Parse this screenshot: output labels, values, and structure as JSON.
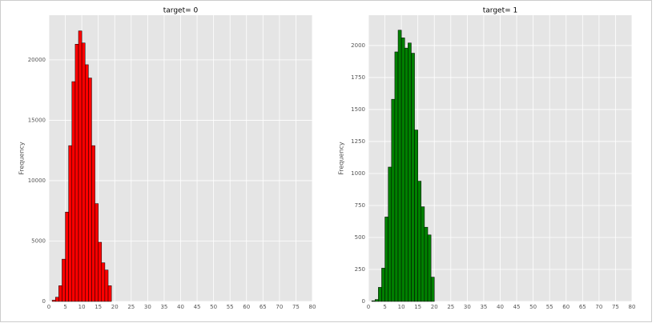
{
  "chart_data": [
    {
      "type": "histogram",
      "title": "target= 0",
      "y_label": "Frequency",
      "color": "#ff0000",
      "grid": true,
      "bins": [
        1,
        2,
        3,
        4,
        5,
        6,
        7,
        8,
        9,
        10,
        11,
        12,
        13,
        14,
        15,
        16,
        17,
        18,
        19
      ],
      "values": [
        100,
        350,
        1300,
        3500,
        7400,
        12900,
        18200,
        21300,
        22400,
        21400,
        19600,
        18500,
        12900,
        8100,
        4900,
        3200,
        2600,
        1300
      ],
      "xlim": [
        0,
        80
      ],
      "xticks": [
        0,
        5,
        10,
        15,
        20,
        25,
        30,
        35,
        40,
        45,
        50,
        55,
        60,
        65,
        70,
        75,
        80
      ],
      "ylim": [
        0,
        23700
      ],
      "yticks": [
        0,
        5000,
        10000,
        15000,
        20000
      ]
    },
    {
      "type": "histogram",
      "title": "target= 1",
      "y_label": "Frequency",
      "color": "#008000",
      "grid": true,
      "bins": [
        1,
        2,
        3,
        4,
        5,
        6,
        7,
        8,
        9,
        10,
        11,
        12,
        13,
        14,
        15,
        16,
        17,
        18,
        19,
        20
      ],
      "values": [
        5,
        15,
        110,
        260,
        660,
        1050,
        1580,
        1950,
        2120,
        2060,
        1980,
        2020,
        1940,
        1340,
        940,
        740,
        580,
        520,
        190
      ],
      "xlim": [
        0,
        80
      ],
      "xticks": [
        0,
        5,
        10,
        15,
        20,
        25,
        30,
        35,
        40,
        45,
        50,
        55,
        60,
        65,
        70,
        75,
        80
      ],
      "ylim": [
        0,
        2237
      ],
      "yticks": [
        0,
        250,
        500,
        750,
        1000,
        1250,
        1500,
        1750,
        2000
      ]
    }
  ]
}
